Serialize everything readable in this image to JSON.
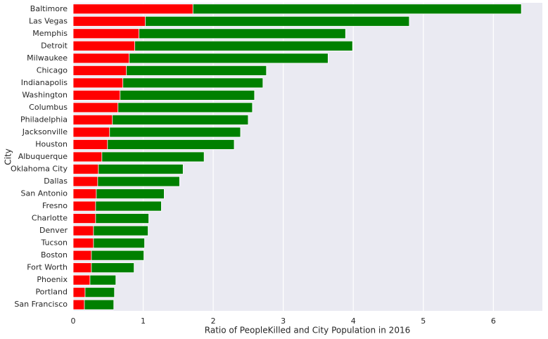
{
  "chart_data": {
    "type": "overlay-hbar",
    "x_label": "Ratio of PeopleKilled and City Population in 2016",
    "y_label": "City",
    "categories": [
      "Baltimore",
      "Las Vegas",
      "Memphis",
      "Detroit",
      "Milwaukee",
      "Chicago",
      "Indianapolis",
      "Washington",
      "Columbus",
      "Philadelphia",
      "Jacksonville",
      "Houston",
      "Albuquerque",
      "Oklahoma City",
      "Dallas",
      "San Antonio",
      "Fresno",
      "Charlotte",
      "Denver",
      "Tucson",
      "Boston",
      "Fort Worth",
      "Phoenix",
      "Portland",
      "San Francisco"
    ],
    "series": [
      {
        "color": "#008000",
        "values": [
          6.4,
          4.8,
          3.89,
          3.99,
          3.64,
          2.76,
          2.71,
          2.59,
          2.56,
          2.5,
          2.39,
          2.3,
          1.87,
          1.57,
          1.52,
          1.3,
          1.26,
          1.08,
          1.07,
          1.02,
          1.01,
          0.87,
          0.61,
          0.59,
          0.58
        ]
      },
      {
        "color": "#ff0000",
        "values": [
          1.71,
          1.03,
          0.94,
          0.88,
          0.8,
          0.76,
          0.71,
          0.67,
          0.64,
          0.56,
          0.52,
          0.49,
          0.41,
          0.36,
          0.35,
          0.33,
          0.32,
          0.32,
          0.29,
          0.29,
          0.26,
          0.26,
          0.24,
          0.17,
          0.16
        ]
      }
    ],
    "xlim": [
      0,
      6.7
    ],
    "xticks": [
      0,
      1,
      2,
      3,
      4,
      5,
      6
    ],
    "grid": true
  }
}
